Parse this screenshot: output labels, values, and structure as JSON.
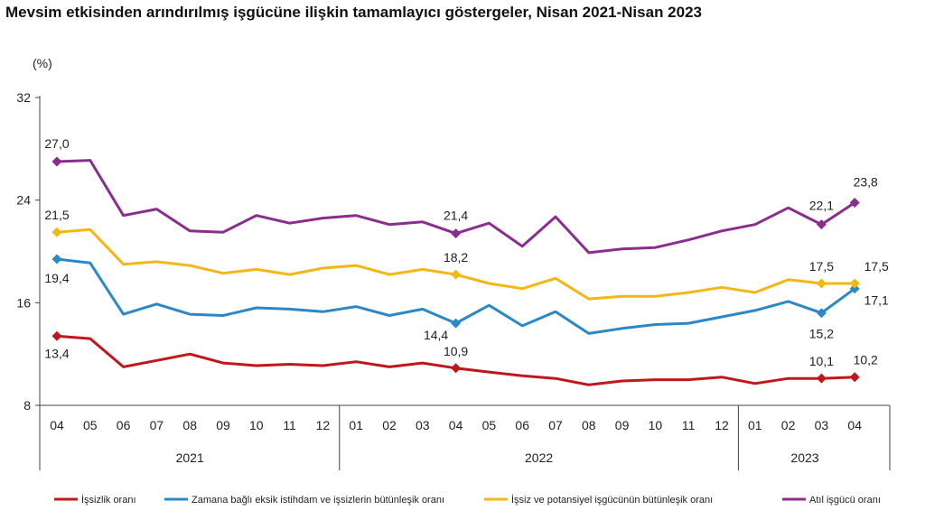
{
  "title": "Mevsim etkisinden arındırılmış işgücüne ilişkin tamamlayıcı göstergeler, Nisan 2021-Nisan 2023",
  "chart_data": {
    "type": "line",
    "title": "Mevsim etkisinden arındırılmış işgücüne ilişkin tamamlayıcı göstergeler, Nisan 2021-Nisan 2023",
    "yunit": "(%)",
    "ylim": [
      8,
      32
    ],
    "yticks": [
      8,
      16,
      24,
      32
    ],
    "categories": [
      "04",
      "05",
      "06",
      "07",
      "08",
      "09",
      "10",
      "11",
      "12",
      "01",
      "02",
      "03",
      "04",
      "05",
      "06",
      "07",
      "08",
      "09",
      "10",
      "11",
      "12",
      "01",
      "02",
      "03",
      "04"
    ],
    "year_groups": [
      {
        "label": "2021",
        "start": 0,
        "end": 8
      },
      {
        "label": "2022",
        "start": 9,
        "end": 20
      },
      {
        "label": "2023",
        "start": 21,
        "end": 24
      }
    ],
    "grid": false,
    "legend_position": "bottom",
    "series": [
      {
        "name": "İşsizlik oranı",
        "color": "#c0171c",
        "values": [
          13.4,
          13.2,
          11.0,
          11.5,
          12.0,
          11.3,
          11.1,
          11.2,
          11.1,
          11.4,
          11.0,
          11.3,
          10.9,
          10.6,
          10.3,
          10.1,
          9.6,
          9.9,
          10.0,
          10.0,
          10.2,
          9.7,
          10.1,
          10.1,
          10.2
        ],
        "labels": [
          {
            "index": 0,
            "text": "13,4"
          },
          {
            "index": 12,
            "text": "10,9"
          },
          {
            "index": 23,
            "text": "10,1"
          },
          {
            "index": 24,
            "text": "10,2"
          }
        ]
      },
      {
        "name": "Zamana bağlı eksik istihdam ve işsizlerin bütünleşik oranı",
        "color": "#2b88c8",
        "values": [
          19.4,
          19.1,
          15.1,
          15.9,
          15.1,
          15.0,
          15.6,
          15.5,
          15.3,
          15.7,
          15.0,
          15.5,
          14.4,
          15.8,
          14.2,
          15.3,
          13.6,
          14.0,
          14.3,
          14.4,
          14.9,
          15.4,
          16.1,
          15.2,
          17.1
        ],
        "labels": [
          {
            "index": 0,
            "text": "19,4"
          },
          {
            "index": 12,
            "text": "14,4"
          },
          {
            "index": 23,
            "text": "15,2"
          },
          {
            "index": 24,
            "text": "17,1"
          }
        ]
      },
      {
        "name": "İşsiz ve potansiyel işgücünün bütünleşik oranı",
        "color": "#f5b716",
        "values": [
          21.5,
          21.7,
          19.0,
          19.2,
          18.9,
          18.3,
          18.6,
          18.2,
          18.7,
          18.9,
          18.2,
          18.6,
          18.2,
          17.5,
          17.1,
          17.9,
          16.3,
          16.5,
          16.5,
          16.8,
          17.2,
          16.8,
          17.8,
          17.5,
          17.5
        ],
        "labels": [
          {
            "index": 0,
            "text": "21,5"
          },
          {
            "index": 12,
            "text": "18,2"
          },
          {
            "index": 23,
            "text": "17,5"
          },
          {
            "index": 24,
            "text": "17,5"
          }
        ]
      },
      {
        "name": "Atıl işgücü oranı",
        "color": "#8b2c8f",
        "values": [
          27.0,
          27.1,
          22.8,
          23.3,
          21.6,
          21.5,
          22.8,
          22.2,
          22.6,
          22.8,
          22.1,
          22.3,
          21.4,
          22.2,
          20.4,
          22.7,
          19.9,
          20.2,
          20.3,
          20.9,
          21.6,
          22.1,
          23.4,
          22.1,
          23.8
        ],
        "labels": [
          {
            "index": 0,
            "text": "27,0"
          },
          {
            "index": 12,
            "text": "21,4"
          },
          {
            "index": 23,
            "text": "22,1"
          },
          {
            "index": 24,
            "text": "23,8"
          }
        ]
      }
    ]
  }
}
